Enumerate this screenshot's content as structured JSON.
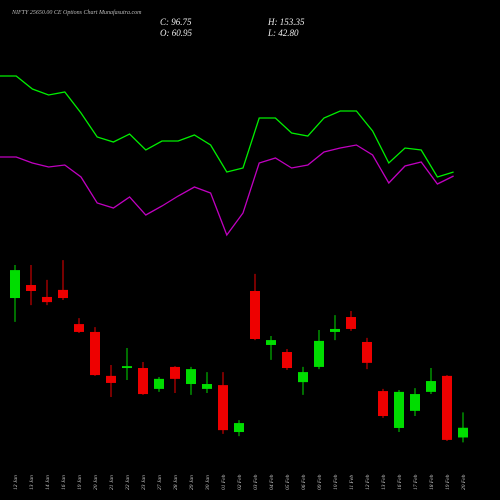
{
  "chart_data": [
    {
      "type": "line",
      "ylim": [
        0,
        100
      ],
      "series": [
        {
          "color": "#00ee00",
          "values": [
            87,
            87,
            80.5,
            77.5,
            79,
            68.5,
            56.5,
            54,
            58,
            50,
            54.5,
            54.5,
            57.5,
            52.5,
            39,
            41,
            66,
            66,
            58.5,
            57,
            66,
            69.5,
            69.5,
            59.5,
            43.5,
            51,
            50,
            36.5,
            39
          ]
        },
        {
          "color": "#c000c0",
          "values": [
            46.5,
            46.5,
            43.5,
            41.5,
            42.5,
            36.5,
            23.5,
            21,
            26.5,
            17.5,
            22,
            27,
            31.5,
            28.5,
            7.5,
            18.5,
            43.5,
            46,
            41,
            42.5,
            49,
            51,
            52.5,
            47.5,
            33.5,
            42,
            44,
            33,
            37
          ]
        }
      ]
    },
    {
      "type": "candlestick",
      "title": "NIFTY 25650.00 CE Options Chart Munafasutra.com",
      "ohlc_labels": [
        "C: 96.75",
        "H: 153.35",
        "O: 60.95",
        "L: 42.80"
      ],
      "ylim": [
        0,
        730
      ],
      "up_color": "#00dd00",
      "down_color": "#ee0000",
      "categories": [
        "12 Jan",
        "13 Jan",
        "14 Jan",
        "16 Jan",
        "19 Jan",
        "20 Jan",
        "21 Jan",
        "22 Jan",
        "23 Jan",
        "27 Jan",
        "28 Jan",
        "29 Jan",
        "30 Jan",
        "01 Feb",
        "02 Feb",
        "03 Feb",
        "04 Feb",
        "05 Feb",
        "06 Feb",
        "09 Feb",
        "10 Feb",
        "11 Feb",
        "12 Feb",
        "13 Feb",
        "16 Feb",
        "17 Feb",
        "18 Feb",
        "19 Feb",
        "20 Feb"
      ],
      "open": [
        575,
        623,
        579,
        605,
        479,
        450,
        288,
        317,
        317,
        240,
        321,
        258,
        240,
        254,
        81,
        601,
        402,
        376,
        265,
        321,
        450,
        505,
        413,
        232,
        96,
        159,
        229,
        288,
        60.95
      ],
      "high": [
        697,
        697,
        642,
        715,
        501,
        468,
        328,
        391,
        339,
        284,
        324,
        321,
        302,
        302,
        125,
        664,
        435,
        387,
        321,
        457,
        512,
        527,
        428,
        240,
        236,
        243,
        317,
        291,
        153.35
      ],
      "low": [
        487,
        549,
        549,
        568,
        446,
        288,
        210,
        273,
        218,
        229,
        225,
        218,
        225,
        74,
        66,
        420,
        347,
        310,
        218,
        313,
        420,
        454,
        313,
        133,
        81,
        140,
        221,
        48,
        42.8
      ],
      "close": [
        678,
        601,
        560,
        575,
        450,
        291,
        262,
        324,
        221,
        277,
        277,
        313,
        258,
        88,
        114,
        424,
        420,
        317,
        302,
        417,
        461,
        461,
        336,
        140,
        229,
        221,
        269,
        52,
        96.75
      ]
    }
  ]
}
